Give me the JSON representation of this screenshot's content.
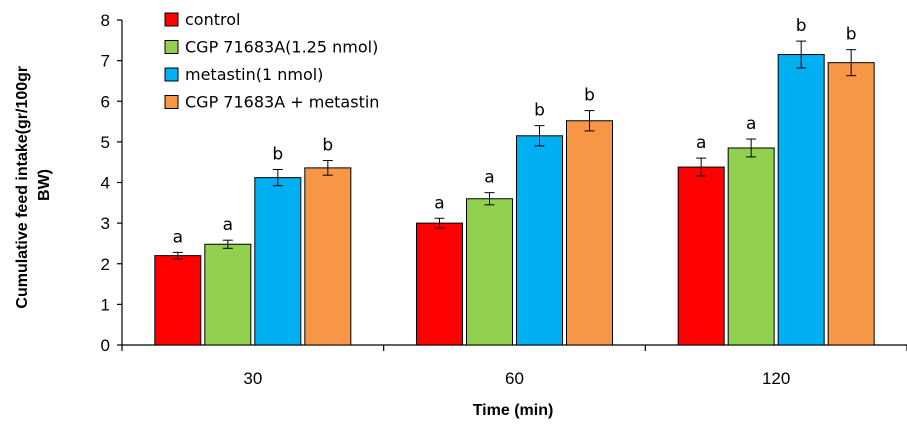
{
  "chart_data": {
    "type": "bar",
    "xlabel": "Time (min)",
    "ylabel": "Cumulative feed intake(gr/100gr BW)",
    "ylabel_lines": [
      "Cumulative feed intake(gr/100gr",
      "BW)"
    ],
    "ylim": [
      0,
      8
    ],
    "yticks": [
      "0",
      "1",
      "2",
      "3",
      "4",
      "5",
      "6",
      "7",
      "8"
    ],
    "categories": [
      "30",
      "60",
      "120"
    ],
    "legend_position": "top-left",
    "grid": false,
    "series": [
      {
        "name": "control",
        "color": "#ff0000",
        "values": [
          2.2,
          3.0,
          4.38
        ],
        "errors": [
          0.08,
          0.12,
          0.22
        ],
        "sig": [
          "a",
          "a",
          "a"
        ]
      },
      {
        "name": "CGP 71683A(1.25 nmol)",
        "color": "#92d050",
        "values": [
          2.48,
          3.6,
          4.85
        ],
        "errors": [
          0.1,
          0.15,
          0.22
        ],
        "sig": [
          "a",
          "a",
          "a"
        ]
      },
      {
        "name": "metastin(1 nmol)",
        "color": "#00b0f0",
        "values": [
          4.12,
          5.15,
          7.15
        ],
        "errors": [
          0.2,
          0.25,
          0.33
        ],
        "sig": [
          "b",
          "b",
          "b"
        ]
      },
      {
        "name": "CGP 71683A + metastin",
        "color": "#f79646",
        "values": [
          4.36,
          5.52,
          6.95
        ],
        "errors": [
          0.18,
          0.25,
          0.32
        ],
        "sig": [
          "b",
          "b",
          "b"
        ]
      }
    ]
  }
}
